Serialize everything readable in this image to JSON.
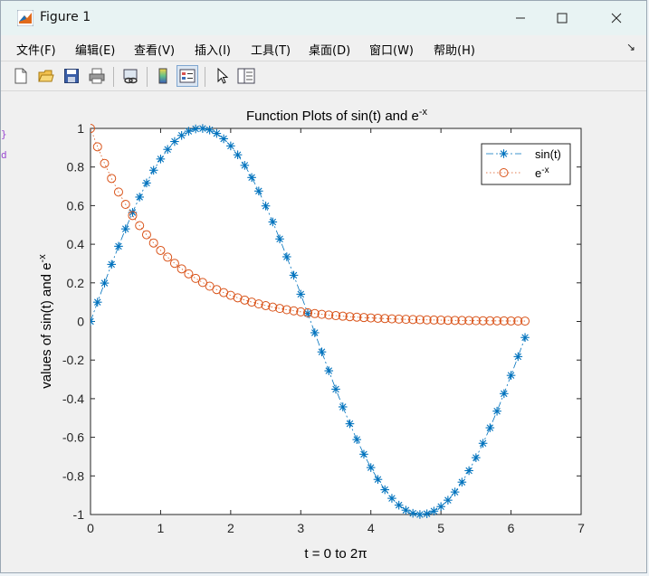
{
  "window": {
    "title": "Figure 1"
  },
  "menu": {
    "items": [
      "文件(F)",
      "编辑(E)",
      "查看(V)",
      "插入(I)",
      "工具(T)",
      "桌面(D)",
      "窗口(W)",
      "帮助(H)"
    ],
    "overflow": "↘"
  },
  "toolbar": {
    "buttons": [
      "new-figure-icon",
      "open-file-icon",
      "save-icon",
      "print-icon",
      "link-plot-icon",
      "colorbar-icon",
      "legend-icon",
      "pointer-icon",
      "property-inspector-icon"
    ],
    "active": "legend-icon"
  },
  "side_marks": [
    "}",
    "d"
  ],
  "chart_data": {
    "type": "line",
    "title_main": "Function Plots of sin(t) and e",
    "title_sup": "-x",
    "xlabel": "t = 0 to 2π",
    "ylabel_main": "values of sin(t) and e",
    "ylabel_sup": "-x",
    "xlim": [
      0,
      7
    ],
    "ylim": [
      -1,
      1
    ],
    "xticks": [
      0,
      1,
      2,
      3,
      4,
      5,
      6,
      7
    ],
    "yticks": [
      -1,
      -0.8,
      -0.6,
      -0.4,
      -0.2,
      0,
      0.2,
      0.4,
      0.6,
      0.8,
      1
    ],
    "x": {
      "start": 0,
      "end": 6.2,
      "step": 0.1
    },
    "grid": false,
    "legend_position": "top-right",
    "series": [
      {
        "name": "sin(t)",
        "name_sup": "",
        "function": "sin(t)",
        "color": "#0072bd",
        "marker": "asterisk",
        "line": "dash-dot"
      },
      {
        "name": "e",
        "name_sup": "-x",
        "function": "exp(-t)",
        "color": "#d95319",
        "marker": "circle",
        "line": "dotted"
      }
    ]
  }
}
